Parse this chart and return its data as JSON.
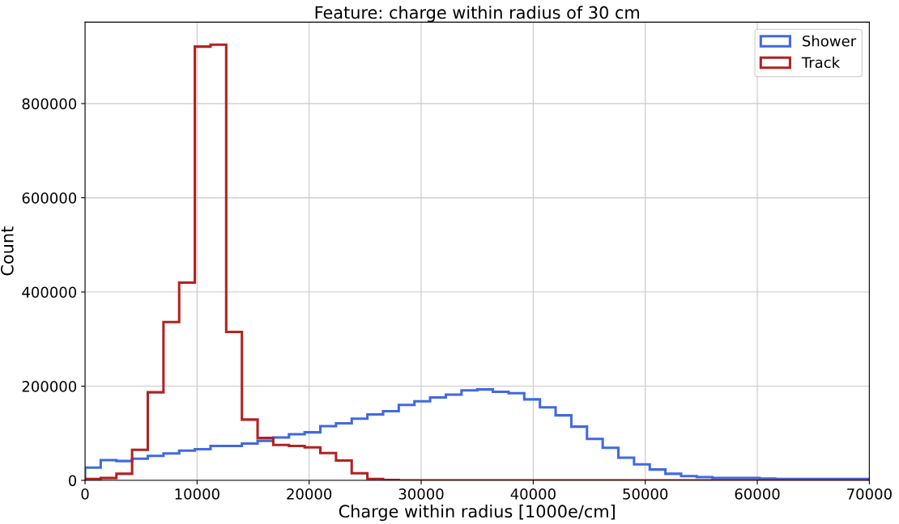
{
  "chart_data": {
    "type": "histogram",
    "title": "Feature: charge within radius of 30 cm",
    "xlabel": "Charge within radius [1000e/cm]",
    "ylabel": "Count",
    "bins": [
      0,
      1400,
      2800,
      4200,
      5600,
      7000,
      8400,
      9800,
      11200,
      12600,
      14000,
      15400,
      16800,
      18200,
      19600,
      21000,
      22400,
      23800,
      25200,
      26600,
      28000,
      29400,
      30800,
      32200,
      33600,
      35000,
      36400,
      37800,
      39200,
      40600,
      42000,
      43400,
      44800,
      46200,
      47600,
      49000,
      50400,
      51800,
      53200,
      54600,
      56000,
      57400,
      58800,
      60200,
      61600,
      63000,
      64400,
      65800,
      67200,
      68600,
      70000
    ],
    "series": [
      {
        "name": "Shower",
        "color": "#4169e1",
        "values": [
          27000,
          43000,
          41000,
          46000,
          52000,
          57000,
          63000,
          66000,
          73000,
          73000,
          78000,
          84000,
          91000,
          98000,
          102000,
          115000,
          121000,
          131000,
          140000,
          147000,
          160000,
          168000,
          176000,
          182000,
          191000,
          193000,
          188000,
          185000,
          172000,
          155000,
          138000,
          114000,
          88000,
          69000,
          48000,
          34000,
          23000,
          14000,
          9000,
          7000,
          5000,
          5000,
          5000,
          4000,
          3000,
          3000,
          3000,
          3000,
          3000,
          3000
        ]
      },
      {
        "name": "Track",
        "color": "#b22222",
        "values": [
          3000,
          5000,
          14000,
          65000,
          187000,
          336000,
          420000,
          921000,
          925000,
          315000,
          129000,
          90000,
          75000,
          73000,
          70000,
          58000,
          42000,
          15000,
          3000,
          1000,
          0,
          0,
          0,
          0,
          0,
          0,
          0,
          0,
          0,
          0,
          0,
          0,
          0,
          0,
          0,
          0,
          0,
          0,
          0,
          0,
          0,
          0,
          0,
          0,
          0,
          0,
          0,
          0,
          0,
          0
        ]
      }
    ],
    "xlim": [
      0,
      70000
    ],
    "xticks": [
      0,
      10000,
      20000,
      30000,
      40000,
      50000,
      60000,
      70000
    ],
    "ylim": [
      0,
      973000
    ],
    "yticks": [
      0,
      200000,
      400000,
      600000,
      800000
    ],
    "grid": true,
    "legend": "top right"
  }
}
